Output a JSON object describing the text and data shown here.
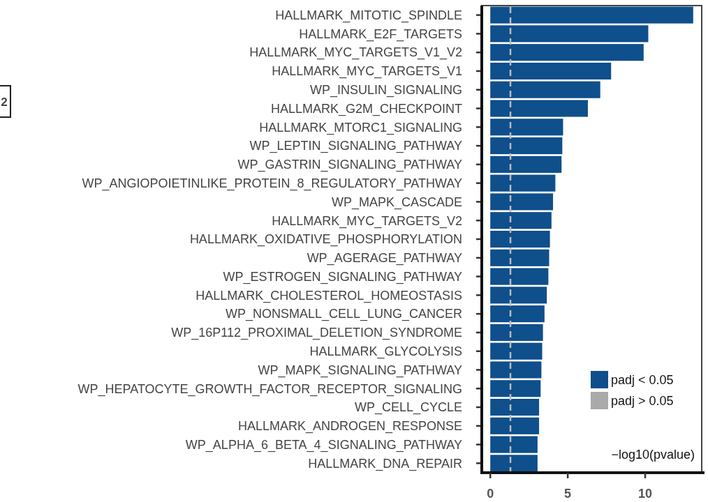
{
  "chart_data": {
    "type": "bar",
    "orientation": "horizontal",
    "categories": [
      "HALLMARK_MITOTIC_SPINDLE",
      "HALLMARK_E2F_TARGETS",
      "HALLMARK_MYC_TARGETS_V1_V2",
      "HALLMARK_MYC_TARGETS_V1",
      "WP_INSULIN_SIGNALING",
      "HALLMARK_G2M_CHECKPOINT",
      "HALLMARK_MTORC1_SIGNALING",
      "WP_LEPTIN_SIGNALING_PATHWAY",
      "WP_GASTRIN_SIGNALING_PATHWAY",
      "WP_ANGIOPOIETINLIKE_PROTEIN_8_REGULATORY_PATHWAY",
      "WP_MAPK_CASCADE",
      "HALLMARK_MYC_TARGETS_V2",
      "HALLMARK_OXIDATIVE_PHOSPHORYLATION",
      "WP_AGERAGE_PATHWAY",
      "WP_ESTROGEN_SIGNALING_PATHWAY",
      "HALLMARK_CHOLESTEROL_HOMEOSTASIS",
      "WP_NONSMALL_CELL_LUNG_CANCER",
      "WP_16P112_PROXIMAL_DELETION_SYNDROME",
      "HALLMARK_GLYCOLYSIS",
      "WP_MAPK_SIGNALING_PATHWAY",
      "WP_HEPATOCYTE_GROWTH_FACTOR_RECEPTOR_SIGNALING",
      "WP_CELL_CYCLE",
      "HALLMARK_ANDROGEN_RESPONSE",
      "WP_ALPHA_6_BETA_4_SIGNALING_PATHWAY",
      "HALLMARK_DNA_REPAIR"
    ],
    "series": [
      {
        "name": "padj < 0.05",
        "color": "#0f4f8b",
        "values": [
          13.1,
          10.2,
          9.9,
          7.8,
          7.1,
          6.3,
          4.7,
          4.65,
          4.6,
          4.2,
          4.05,
          3.95,
          3.85,
          3.8,
          3.75,
          3.65,
          3.5,
          3.4,
          3.35,
          3.3,
          3.25,
          3.15,
          3.15,
          3.05,
          3.05
        ]
      },
      {
        "name": "padj > 0.05",
        "color": "#aaaaaa",
        "values": [
          null,
          null,
          null,
          null,
          null,
          null,
          null,
          null,
          null,
          null,
          null,
          null,
          null,
          null,
          null,
          null,
          null,
          null,
          null,
          null,
          null,
          null,
          null,
          null,
          null
        ]
      }
    ],
    "xlabel": "−log10(pvalue)",
    "xlim": [
      -0.55,
      13.65
    ],
    "xticks": [
      0,
      5,
      10
    ],
    "ref_lines": [
      {
        "axis": "x",
        "value": 1.3,
        "color": "#bbbbbb",
        "line_style": "dashed"
      }
    ],
    "legend": "bottom right",
    "annotations": [
      "2"
    ]
  }
}
